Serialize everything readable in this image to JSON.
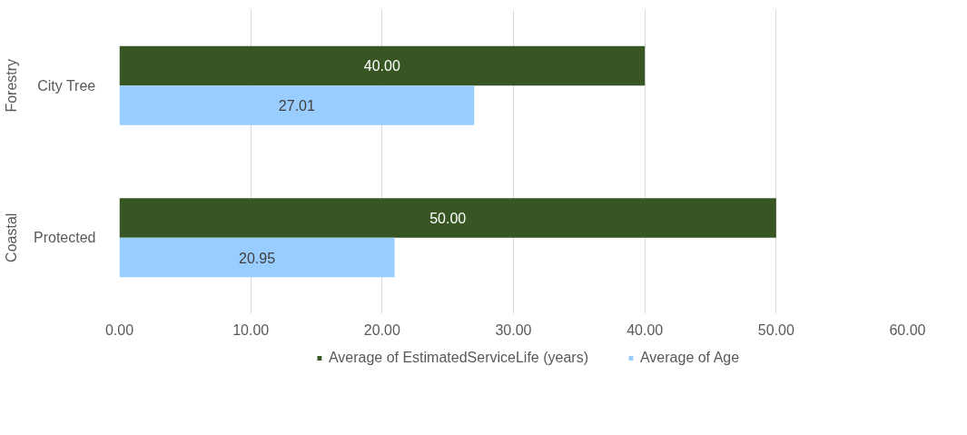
{
  "chart_data": {
    "type": "bar",
    "orientation": "horizontal",
    "categories": [
      "City Tree",
      "Protected"
    ],
    "annotations": [
      "Forestry",
      "Coastal"
    ],
    "series": [
      {
        "name": "Average of EstimatedServiceLife (years)",
        "color": "#375623",
        "values": [
          40,
          50
        ],
        "value_labels": [
          "40.00",
          "50.00"
        ]
      },
      {
        "name": "Average of Age",
        "color": "#99ccff",
        "values": [
          27.01,
          20.95
        ],
        "value_labels": [
          "27.01",
          "20.95"
        ]
      }
    ],
    "xlim": [
      0,
      60
    ],
    "xticks": [
      {
        "value": 0,
        "label": "0.00"
      },
      {
        "value": 10,
        "label": "10.00"
      },
      {
        "value": 20,
        "label": "20.00"
      },
      {
        "value": 30,
        "label": "30.00"
      },
      {
        "value": 40,
        "label": "40.00"
      },
      {
        "value": 50,
        "label": "50.00"
      },
      {
        "value": 60,
        "label": "60.00"
      }
    ],
    "grid": "x",
    "legend": "bottom"
  }
}
